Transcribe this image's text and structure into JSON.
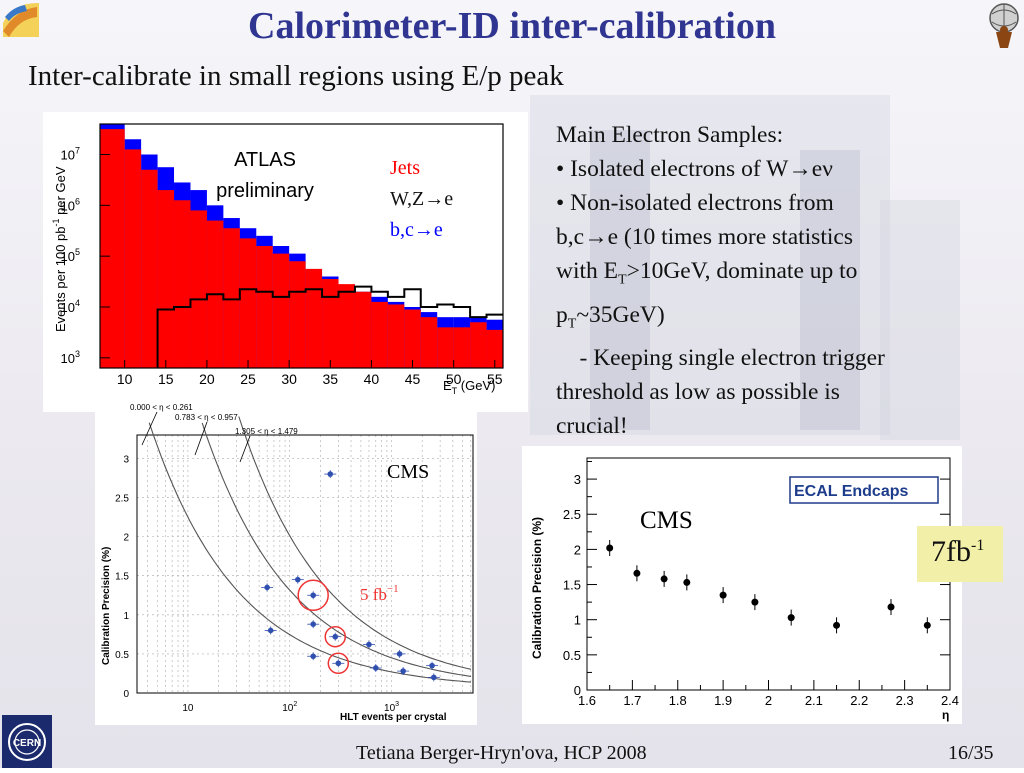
{
  "slide": {
    "title": "Calorimeter-ID inter-calibration",
    "subtitle": "Inter-calibrate in small regions using E/p peak",
    "footer": "Tetiana Berger-Hryn'ova, HCP 2008",
    "page": "16/35"
  },
  "text_block": {
    "heading": "Main Electron Samples:",
    "bullet1": "• Isolated electrons of W",
    "bullet1_arrow": "→",
    "bullet1_tail": "eν",
    "bullet2_a": "• Non-isolated electrons from",
    "bullet2_b": "b,c",
    "bullet2_b_arrow": "→",
    "bullet2_b_tail": "e (10 times more statistics",
    "bullet2_c1": "with E",
    "bullet2_c_sub": "T",
    "bullet2_c2": ">10GeV, dominate up to",
    "bullet2_d1": "p",
    "bullet2_d_sub": "T",
    "bullet2_d2": "~35GeV)",
    "bullet3_a": "    - Keeping single electron trigger",
    "bullet3_b": "threshold as low as possible is",
    "bullet3_c": "crucial!"
  },
  "colors": {
    "title": "#2f3590",
    "jets": "#ff0000",
    "bc": "#0000ff",
    "highlight_box": "#f2f0a8",
    "circle": "#ee3333"
  },
  "icons": [
    "cern-logo",
    "atlas-logo",
    "corner-logo"
  ],
  "chart_data": [
    {
      "type": "bar",
      "ylabel_a": "Events per 100 pb",
      "ylabel_sup": "-1",
      "ylabel_b": " per GeV",
      "xlabel_a": "E",
      "xlabel_sub": "T",
      "xlabel_b": " (GeV)",
      "annotation1": "ATLAS",
      "annotation2": "preliminary",
      "legend": [
        "Jets",
        "W,Z",
        "→",
        "e",
        "b,c",
        "→",
        "e"
      ],
      "x_ticks": [
        "10",
        "15",
        "20",
        "25",
        "30",
        "35",
        "40",
        "45",
        "50",
        "55"
      ],
      "y_ticks": [
        {
          "base": "10",
          "exp": "3"
        },
        {
          "base": "10",
          "exp": "4"
        },
        {
          "base": "10",
          "exp": "5"
        },
        {
          "base": "10",
          "exp": "6"
        },
        {
          "base": "10",
          "exp": "7"
        }
      ],
      "ylog": true,
      "xlim": [
        7,
        56
      ],
      "ylim_log10": [
        2.8,
        7.6
      ],
      "bin_edges": [
        7,
        10,
        12,
        14,
        16,
        18,
        20,
        22,
        24,
        26,
        28,
        30,
        32,
        34,
        36,
        38,
        40,
        42,
        44,
        46,
        48,
        50,
        52,
        54,
        56
      ],
      "series": [
        {
          "name": "Jets",
          "log10": [
            7.5,
            7.1,
            6.7,
            6.3,
            6.1,
            5.9,
            5.7,
            5.55,
            5.35,
            5.2,
            5.05,
            4.9,
            4.75,
            4.55,
            4.45,
            4.3,
            4.1,
            4.05,
            3.95,
            3.8,
            3.6,
            3.6,
            3.7,
            3.55
          ]
        },
        {
          "name": "b,c→e",
          "log10": [
            7.6,
            7.3,
            7.0,
            6.75,
            6.45,
            6.3,
            6.0,
            5.75,
            5.55,
            5.4,
            5.2,
            5.05,
            4.7,
            4.6,
            4.4,
            4.3,
            4.2,
            4.1,
            4.0,
            3.9,
            3.8,
            3.8,
            3.8,
            3.75
          ]
        },
        {
          "name": "W,Z→e",
          "log10": [
            null,
            null,
            null,
            3.95,
            4.0,
            4.15,
            4.25,
            4.15,
            4.35,
            4.3,
            4.2,
            4.3,
            4.35,
            4.2,
            4.3,
            4.4,
            4.3,
            4.2,
            4.35,
            4.0,
            4.05,
            4.0,
            3.8,
            3.85
          ]
        }
      ]
    },
    {
      "type": "scatter",
      "ylabel": "Calibration Precision (%)",
      "xlabel": "HLT events per crystal",
      "annotation": "CMS",
      "lumi_a": "5 fb",
      "lumi_sup": "−1",
      "eta_labels": [
        "0.000 <   η < 0.261",
        "0.783 <    η  < 0.957",
        "1.305 <    η  < 1.479"
      ],
      "x_ticks": [
        {
          "base": "10",
          "exp": ""
        },
        {
          "base": "10",
          "exp": "2"
        },
        {
          "base": "10",
          "exp": "3"
        }
      ],
      "y_ticks": [
        "0",
        "0.5",
        "1",
        "1.5",
        "2",
        "2.5",
        "3"
      ],
      "xlog": true,
      "ylim": [
        0,
        3.3
      ],
      "xlim_log10": [
        0.5,
        3.8
      ],
      "points": [
        {
          "x": 250,
          "y": 2.8
        },
        {
          "x": 60,
          "y": 1.35
        },
        {
          "x": 65,
          "y": 0.8
        },
        {
          "x": 120,
          "y": 1.45
        },
        {
          "x": 170,
          "y": 1.25
        },
        {
          "x": 170,
          "y": 0.88
        },
        {
          "x": 170,
          "y": 0.47
        },
        {
          "x": 280,
          "y": 0.72
        },
        {
          "x": 300,
          "y": 0.38
        },
        {
          "x": 600,
          "y": 0.62
        },
        {
          "x": 700,
          "y": 0.32
        },
        {
          "x": 1200,
          "y": 0.5
        },
        {
          "x": 1300,
          "y": 0.28
        },
        {
          "x": 2500,
          "y": 0.35
        },
        {
          "x": 2600,
          "y": 0.2
        }
      ],
      "circled_indices": [
        4,
        7,
        8
      ]
    },
    {
      "type": "scatter",
      "ylabel": "Calibration Precision (%)",
      "xlabel": "η",
      "annotation": "CMS",
      "legend": "ECAL Endcaps",
      "lumi_a": "7fb",
      "lumi_sup": "-1",
      "x_ticks": [
        "1.6",
        "1.7",
        "1.8",
        "1.9",
        "2",
        "2.1",
        "2.2",
        "2.3",
        "2.4"
      ],
      "y_ticks": [
        "0",
        "0.5",
        "1",
        "1.5",
        "2",
        "2.5",
        "3"
      ],
      "xlim": [
        1.6,
        2.4
      ],
      "ylim": [
        0,
        3.3
      ],
      "x": [
        1.65,
        1.71,
        1.77,
        1.82,
        1.9,
        1.97,
        2.05,
        2.15,
        2.27,
        2.35
      ],
      "y": [
        2.02,
        1.66,
        1.58,
        1.53,
        1.35,
        1.25,
        1.03,
        0.92,
        1.18,
        0.92
      ]
    }
  ]
}
